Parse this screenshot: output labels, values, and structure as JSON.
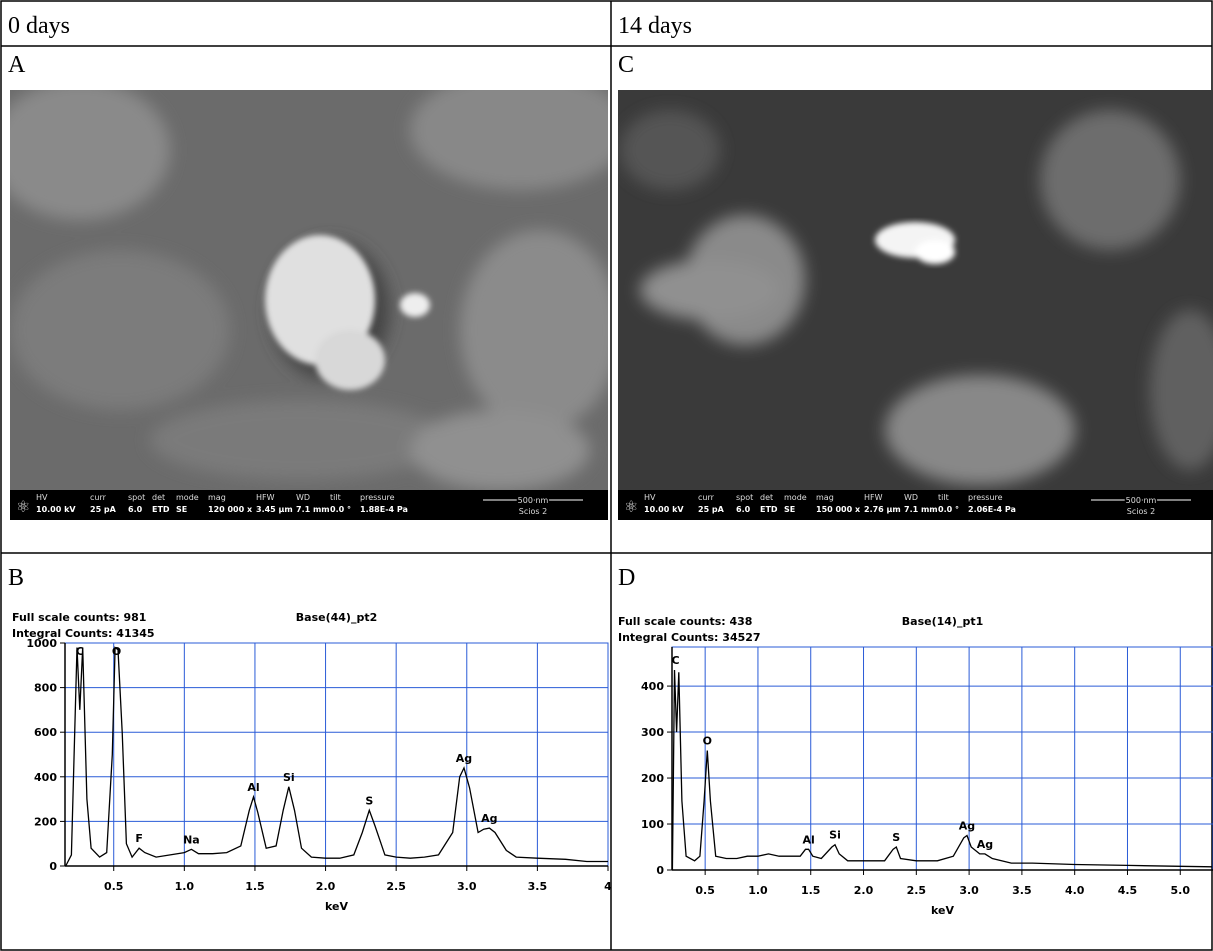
{
  "header": {
    "left": "0 days",
    "right": "14 days"
  },
  "panels": {
    "a": "A",
    "b": "B",
    "c": "C",
    "d": "D"
  },
  "sem": [
    {
      "fields": [
        {
          "label": "HV",
          "value": "10.00 kV"
        },
        {
          "label": "curr",
          "value": "25 pA"
        },
        {
          "label": "spot",
          "value": "6.0"
        },
        {
          "label": "det",
          "value": "ETD"
        },
        {
          "label": "mode",
          "value": "SE"
        },
        {
          "label": "mag",
          "value": "120 000 x"
        },
        {
          "label": "HFW",
          "value": "3.45 µm"
        },
        {
          "label": "WD",
          "value": "7.1 mm"
        },
        {
          "label": "tilt",
          "value": "0.0 °"
        },
        {
          "label": "pressure",
          "value": "1.88E-4 Pa"
        }
      ],
      "scale": "500 nm",
      "instrument": "Scios 2"
    },
    {
      "fields": [
        {
          "label": "HV",
          "value": "10.00 kV"
        },
        {
          "label": "curr",
          "value": "25 pA"
        },
        {
          "label": "spot",
          "value": "6.0"
        },
        {
          "label": "det",
          "value": "ETD"
        },
        {
          "label": "mode",
          "value": "SE"
        },
        {
          "label": "mag",
          "value": "150 000 x"
        },
        {
          "label": "HFW",
          "value": "2.76 µm"
        },
        {
          "label": "WD",
          "value": "7.1 mm"
        },
        {
          "label": "tilt",
          "value": "0.0 °"
        },
        {
          "label": "pressure",
          "value": "2.06E-4 Pa"
        }
      ],
      "scale": "500 nm",
      "instrument": "Scios 2"
    }
  ],
  "chart_data": [
    {
      "type": "line",
      "title": "Base(44)_pt2",
      "full_scale": "Full scale counts: 981",
      "integral": "Integral Counts: 41345",
      "x_label": "keV",
      "color": "#000000",
      "grid": true,
      "xlim": [
        0.155,
        4.0
      ],
      "ylim": [
        0,
        1000
      ],
      "xticks": [
        0.5,
        {
          "value": 1,
          "label": "1.0"
        },
        1.5,
        {
          "value": 2,
          "label": "2.0"
        },
        2.5,
        {
          "value": 3,
          "label": "3.0"
        },
        3.5,
        4
      ],
      "yticks": [
        0,
        200,
        400,
        600,
        800,
        1000
      ],
      "x": [
        0.16,
        0.2,
        0.24,
        0.26,
        0.28,
        0.31,
        0.34,
        0.4,
        0.45,
        0.49,
        0.51,
        0.53,
        0.56,
        0.59,
        0.63,
        0.68,
        0.72,
        0.8,
        0.9,
        1.0,
        1.05,
        1.1,
        1.2,
        1.3,
        1.4,
        1.46,
        1.49,
        1.52,
        1.58,
        1.65,
        1.7,
        1.74,
        1.78,
        1.83,
        1.9,
        2.0,
        2.1,
        2.2,
        2.26,
        2.31,
        2.35,
        2.42,
        2.5,
        2.6,
        2.7,
        2.8,
        2.9,
        2.95,
        2.98,
        3.02,
        3.08,
        3.12,
        3.16,
        3.2,
        3.28,
        3.35,
        3.5,
        3.7,
        3.85,
        4.0
      ],
      "values": [
        0,
        50,
        980,
        700,
        980,
        300,
        80,
        40,
        60,
        500,
        980,
        970,
        600,
        100,
        40,
        80,
        60,
        40,
        50,
        60,
        75,
        55,
        55,
        60,
        90,
        250,
        310,
        240,
        80,
        90,
        250,
        355,
        250,
        80,
        40,
        35,
        35,
        50,
        150,
        250,
        180,
        50,
        40,
        35,
        40,
        50,
        150,
        400,
        440,
        350,
        150,
        165,
        170,
        150,
        70,
        40,
        35,
        30,
        20,
        20
      ],
      "annotations": [
        {
          "text": "C",
          "x": 0.26
        },
        {
          "text": "O",
          "x": 0.52
        },
        {
          "text": "F",
          "x": 0.68
        },
        {
          "text": "Na",
          "x": 1.05
        },
        {
          "text": "Al",
          "x": 1.49
        },
        {
          "text": "Si",
          "x": 1.74
        },
        {
          "text": "S",
          "x": 2.31
        },
        {
          "text": "Ag",
          "x": 2.98
        },
        {
          "text": "Ag",
          "x": 3.16
        }
      ]
    },
    {
      "type": "line",
      "title": "Base(14)_pt1",
      "full_scale": "Full scale counts: 438",
      "integral": "Integral Counts: 34527",
      "x_label": "keV",
      "color": "#000000",
      "grid": true,
      "xlim": [
        0.186,
        5.31
      ],
      "ylim": [
        0,
        485
      ],
      "xticks": [
        0.5,
        {
          "value": 1,
          "label": "1.0"
        },
        1.5,
        {
          "value": 2,
          "label": "2.0"
        },
        2.5,
        {
          "value": 3,
          "label": "3.0"
        },
        3.5,
        {
          "value": 4,
          "label": "4.0"
        },
        4.5,
        {
          "value": 5,
          "label": "5.0"
        }
      ],
      "yticks": [
        0,
        100,
        200,
        300,
        400
      ],
      "x": [
        0.19,
        0.21,
        0.23,
        0.25,
        0.28,
        0.32,
        0.4,
        0.45,
        0.49,
        0.52,
        0.55,
        0.6,
        0.7,
        0.8,
        0.9,
        1.0,
        1.1,
        1.2,
        1.3,
        1.4,
        1.45,
        1.48,
        1.52,
        1.6,
        1.7,
        1.73,
        1.77,
        1.85,
        2.0,
        2.2,
        2.28,
        2.31,
        2.35,
        2.5,
        2.7,
        2.85,
        2.95,
        2.98,
        3.02,
        3.1,
        3.15,
        3.22,
        3.4,
        3.6,
        4.0,
        4.5,
        5.0,
        5.3
      ],
      "values": [
        0,
        435,
        300,
        430,
        150,
        30,
        20,
        30,
        150,
        260,
        150,
        30,
        25,
        25,
        30,
        30,
        35,
        30,
        30,
        30,
        45,
        45,
        30,
        25,
        50,
        55,
        35,
        20,
        20,
        20,
        45,
        50,
        25,
        20,
        20,
        30,
        70,
        75,
        50,
        35,
        35,
        25,
        15,
        15,
        12,
        10,
        8,
        7
      ],
      "annotations": [
        {
          "text": "C",
          "x": 0.22
        },
        {
          "text": "O",
          "x": 0.52
        },
        {
          "text": "Al",
          "x": 1.48
        },
        {
          "text": "Si",
          "x": 1.73
        },
        {
          "text": "S",
          "x": 2.31
        },
        {
          "text": "Ag",
          "x": 2.98
        },
        {
          "text": "Ag",
          "x": 3.15
        }
      ]
    }
  ]
}
